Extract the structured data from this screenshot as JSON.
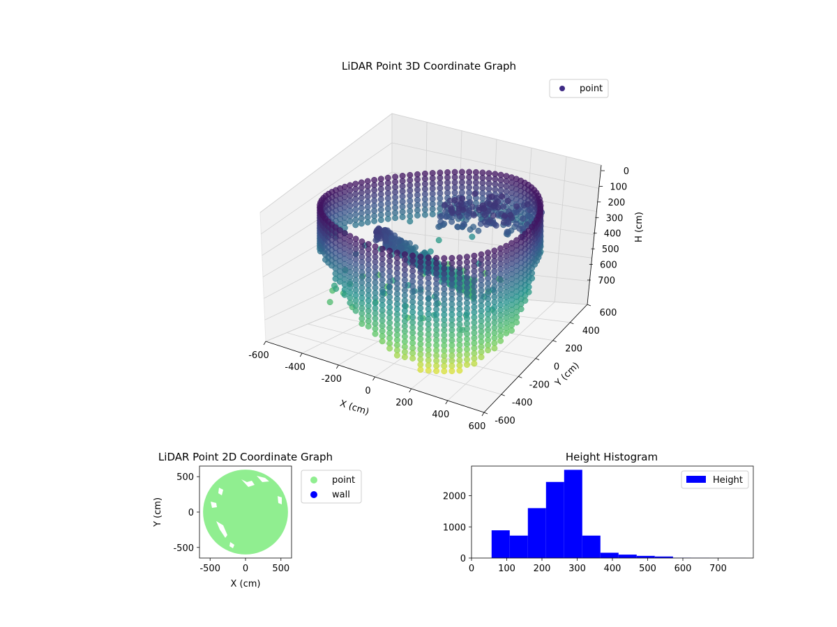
{
  "chart_data": [
    {
      "type": "scatter",
      "title": "LiDAR Point 3D Coordinate Graph",
      "xlabel": "X (cm)",
      "ylabel": "Y (cm)",
      "zlabel": "H (cm)",
      "xlim": [
        -600,
        600
      ],
      "ylim": [
        -600,
        600
      ],
      "zlim": [
        0,
        700
      ],
      "z_inverted": true,
      "x_ticks": [
        "-600",
        "-400",
        "-200",
        "0",
        "200",
        "400",
        "600"
      ],
      "y_ticks": [
        "-600",
        "-400",
        "-200",
        "0",
        "200",
        "400",
        "600"
      ],
      "z_ticks": [
        "0",
        "100",
        "200",
        "300",
        "400",
        "500",
        "600",
        "700"
      ],
      "colormap": [
        "#440154",
        "#3b528b",
        "#21918c",
        "#5ec962",
        "#fde725"
      ],
      "legend": [
        {
          "label": "point",
          "color": "#3e2a84"
        }
      ],
      "legend_position": "top-right",
      "grid": true,
      "description_shape": "cylindrical wall ring of radius ~600 with inner structures"
    },
    {
      "type": "scatter",
      "title": "LiDAR Point 2D Coordinate Graph",
      "xlabel": "X (cm)",
      "ylabel": "Y (cm)",
      "xlim": [
        -650,
        650
      ],
      "ylim": [
        -650,
        650
      ],
      "x_ticks": [
        "-500",
        "0",
        "500"
      ],
      "y_ticks": [
        "500",
        "0",
        "-500"
      ],
      "radius": 600,
      "series": [
        {
          "name": "point",
          "color": "#90ee90"
        },
        {
          "name": "wall",
          "color": "#0000ff"
        }
      ],
      "legend_position": "outside-right"
    },
    {
      "type": "bar",
      "title": "Height Histogram",
      "xlim": [
        0,
        800
      ],
      "ylim": [
        0,
        2950
      ],
      "x_ticks": [
        "0",
        "100",
        "200",
        "300",
        "400",
        "500",
        "600",
        "700"
      ],
      "y_ticks": [
        "0",
        "1000",
        "2000"
      ],
      "bin_width": 51.5,
      "bins": [
        {
          "start": 57,
          "count": 890
        },
        {
          "start": 108.5,
          "count": 720
        },
        {
          "start": 160,
          "count": 1600
        },
        {
          "start": 211.5,
          "count": 2440
        },
        {
          "start": 263,
          "count": 2830
        },
        {
          "start": 314.5,
          "count": 720
        },
        {
          "start": 366,
          "count": 170
        },
        {
          "start": 417.5,
          "count": 110
        },
        {
          "start": 469,
          "count": 70
        },
        {
          "start": 520.5,
          "count": 50
        },
        {
          "start": 572,
          "count": 10
        },
        {
          "start": 623.5,
          "count": 5
        },
        {
          "start": 675,
          "count": 3
        },
        {
          "start": 726.5,
          "count": 2
        }
      ],
      "series": [
        {
          "name": "Height",
          "color": "#0000ff"
        }
      ],
      "legend_position": "top-right"
    }
  ]
}
